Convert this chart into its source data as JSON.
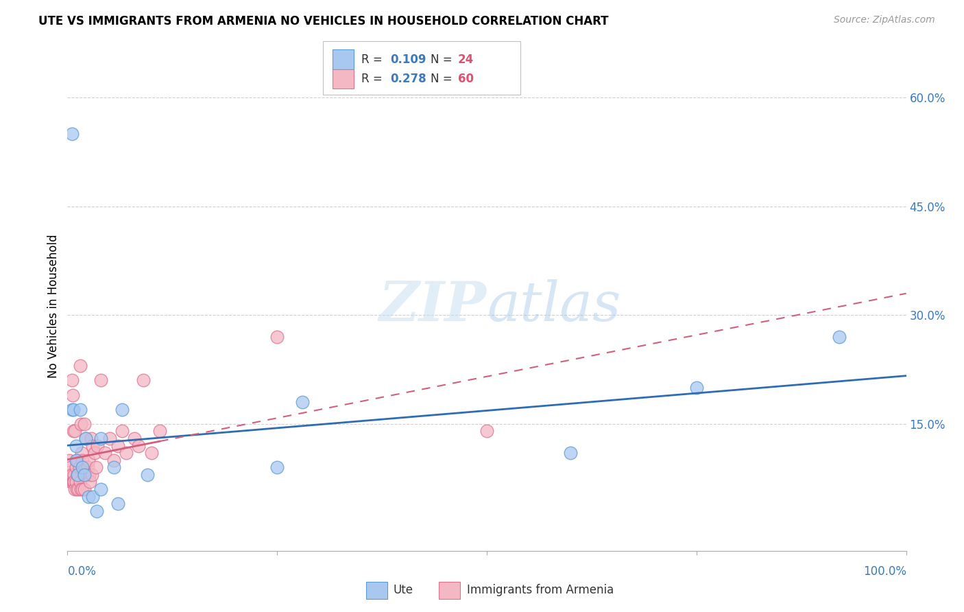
{
  "title": "UTE VS IMMIGRANTS FROM ARMENIA NO VEHICLES IN HOUSEHOLD CORRELATION CHART",
  "source": "Source: ZipAtlas.com",
  "ylabel": "No Vehicles in Household",
  "xlim": [
    0,
    1.0
  ],
  "ylim": [
    -0.025,
    0.65
  ],
  "blue_color": "#a8c8f0",
  "pink_color": "#f4b8c4",
  "blue_edge_color": "#5b9bd5",
  "pink_edge_color": "#e07090",
  "trend_blue_color": "#2e6db4",
  "trend_pink_color": "#d45f7a",
  "watermark_color": "#d4e8f8",
  "ute_points_x": [
    0.005,
    0.005,
    0.007,
    0.01,
    0.01,
    0.012,
    0.015,
    0.018,
    0.02,
    0.022,
    0.025,
    0.03,
    0.035,
    0.04,
    0.04,
    0.055,
    0.06,
    0.065,
    0.095,
    0.25,
    0.28,
    0.6,
    0.75,
    0.92
  ],
  "ute_points_y": [
    0.55,
    0.17,
    0.17,
    0.12,
    0.1,
    0.08,
    0.17,
    0.09,
    0.08,
    0.13,
    0.05,
    0.05,
    0.03,
    0.13,
    0.06,
    0.09,
    0.04,
    0.17,
    0.08,
    0.09,
    0.18,
    0.11,
    0.2,
    0.27
  ],
  "armenia_points_x": [
    0.002,
    0.003,
    0.004,
    0.004,
    0.005,
    0.005,
    0.006,
    0.006,
    0.007,
    0.007,
    0.008,
    0.008,
    0.009,
    0.009,
    0.01,
    0.01,
    0.011,
    0.011,
    0.012,
    0.012,
    0.013,
    0.013,
    0.014,
    0.015,
    0.015,
    0.016,
    0.016,
    0.017,
    0.018,
    0.018,
    0.019,
    0.02,
    0.02,
    0.021,
    0.022,
    0.023,
    0.024,
    0.025,
    0.026,
    0.027,
    0.028,
    0.029,
    0.03,
    0.032,
    0.034,
    0.036,
    0.04,
    0.045,
    0.05,
    0.055,
    0.06,
    0.065,
    0.07,
    0.08,
    0.085,
    0.09,
    0.1,
    0.11,
    0.25,
    0.5
  ],
  "armenia_points_y": [
    0.1,
    0.08,
    0.09,
    0.07,
    0.21,
    0.08,
    0.19,
    0.07,
    0.07,
    0.14,
    0.08,
    0.07,
    0.14,
    0.06,
    0.09,
    0.07,
    0.1,
    0.06,
    0.1,
    0.08,
    0.08,
    0.06,
    0.09,
    0.23,
    0.07,
    0.15,
    0.06,
    0.11,
    0.1,
    0.06,
    0.08,
    0.15,
    0.06,
    0.09,
    0.13,
    0.08,
    0.09,
    0.1,
    0.08,
    0.07,
    0.13,
    0.08,
    0.12,
    0.11,
    0.09,
    0.12,
    0.21,
    0.11,
    0.13,
    0.1,
    0.12,
    0.14,
    0.11,
    0.13,
    0.12,
    0.21,
    0.11,
    0.14,
    0.27,
    0.14
  ],
  "grid_color": "#d0d0d0",
  "grid_yticks": [
    0.15,
    0.3,
    0.45,
    0.6
  ],
  "xtick_positions": [
    0.0,
    0.25,
    0.5,
    0.75,
    1.0
  ]
}
